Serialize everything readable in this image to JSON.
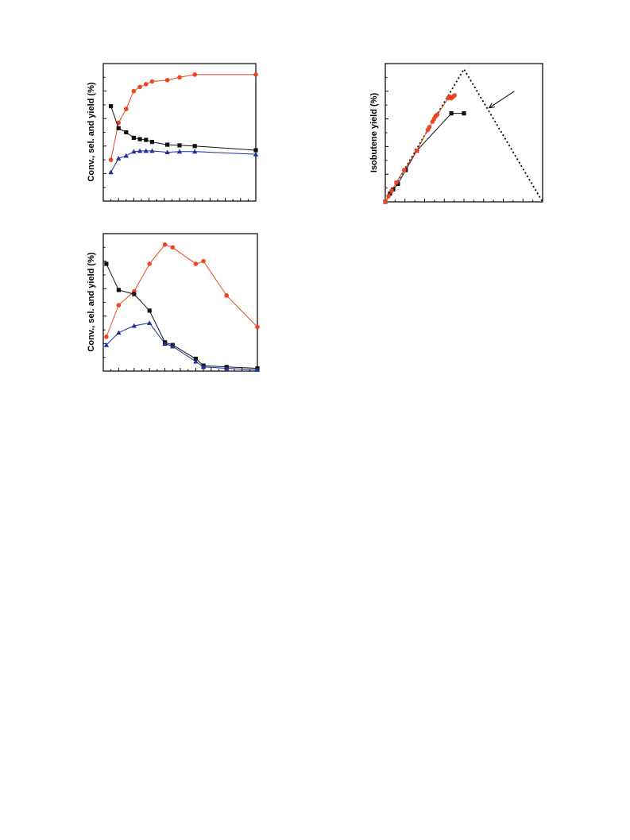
{
  "colors": {
    "selectivity": "#ee4422",
    "conversion": "#111111",
    "yield": "#1c2f9a",
    "frame": "#000000"
  },
  "chart_data": [
    {
      "id": "top-left",
      "type": "line",
      "ylabel": "Conv., sel. and yield (%)",
      "xlim": [
        0,
        10
      ],
      "ylim": [
        0,
        100
      ],
      "series": [
        {
          "key": "selectivity",
          "marker": "circle",
          "x": [
            0.5,
            1.0,
            1.5,
            2.0,
            2.4,
            2.8,
            3.2,
            4.2,
            5.0,
            6.0,
            10.0
          ],
          "y": [
            30,
            57,
            67,
            80,
            83,
            85,
            87,
            88,
            90,
            92,
            92
          ]
        },
        {
          "key": "conversion",
          "marker": "square",
          "x": [
            0.5,
            1.0,
            1.5,
            2.0,
            2.4,
            2.8,
            3.2,
            4.2,
            5.0,
            6.0,
            10.0
          ],
          "y": [
            69,
            53,
            50,
            46,
            45,
            44.5,
            43,
            41,
            40.5,
            40,
            37
          ]
        },
        {
          "key": "yield",
          "marker": "triangle",
          "x": [
            0.5,
            1.0,
            1.5,
            2.0,
            2.4,
            2.8,
            3.2,
            4.2,
            5.0,
            6.0,
            10.0
          ],
          "y": [
            21,
            31,
            33,
            36,
            36.5,
            36.5,
            36.5,
            35.5,
            36,
            36,
            34
          ]
        }
      ]
    },
    {
      "id": "bottom-left",
      "type": "line",
      "ylabel": "Conv., sel. and yield (%)",
      "xlim": [
        0,
        10
      ],
      "ylim": [
        0,
        100
      ],
      "series": [
        {
          "key": "selectivity",
          "marker": "circle",
          "x": [
            0.2,
            1.0,
            2.0,
            3.0,
            4.0,
            4.5,
            6.0,
            6.5,
            8.0,
            10.0
          ],
          "y": [
            25,
            48,
            58,
            78,
            92,
            90,
            78,
            80,
            55,
            32
          ]
        },
        {
          "key": "conversion",
          "marker": "square",
          "x": [
            0.2,
            1.0,
            2.0,
            3.0,
            4.0,
            4.5,
            6.0,
            6.5,
            8.0,
            10.0
          ],
          "y": [
            78,
            59,
            56,
            44,
            21,
            19,
            9,
            4,
            3,
            2
          ]
        },
        {
          "key": "yield",
          "marker": "triangle",
          "x": [
            0.2,
            1.0,
            2.0,
            3.0,
            4.0,
            4.5,
            6.0,
            6.5,
            8.0,
            10.0
          ],
          "y": [
            19,
            28,
            33,
            35,
            20,
            18,
            7,
            3,
            2,
            1
          ]
        }
      ]
    },
    {
      "id": "top-right",
      "type": "scatter",
      "ylabel": "Isobutene yield (%)",
      "xlim": [
        0,
        100
      ],
      "ylim": [
        0,
        50
      ],
      "limit_line": {
        "x": [
          0,
          50,
          100
        ],
        "y": [
          0,
          48,
          0
        ],
        "style": "dotted"
      },
      "series": [
        {
          "key": "conversion",
          "marker": "square",
          "x": [
            0,
            3,
            5,
            8,
            13,
            20,
            42,
            50
          ],
          "y": [
            0,
            3,
            4.5,
            6.5,
            11.5,
            18.5,
            32,
            32
          ]
        },
        {
          "key": "selectivity",
          "marker": "circle",
          "x": [
            0,
            2,
            4,
            7,
            12,
            20,
            27,
            28,
            30,
            31,
            32,
            33,
            40,
            41,
            42,
            43,
            44
          ],
          "y": [
            0,
            2,
            4,
            7,
            11.5,
            18.5,
            26,
            27,
            29,
            30,
            31,
            31.5,
            37.5,
            38,
            37.5,
            38,
            38.5
          ]
        }
      ],
      "annotations": [
        {
          "type": "arrow",
          "from": [
            82,
            40
          ],
          "to": [
            66,
            34
          ]
        }
      ]
    }
  ]
}
